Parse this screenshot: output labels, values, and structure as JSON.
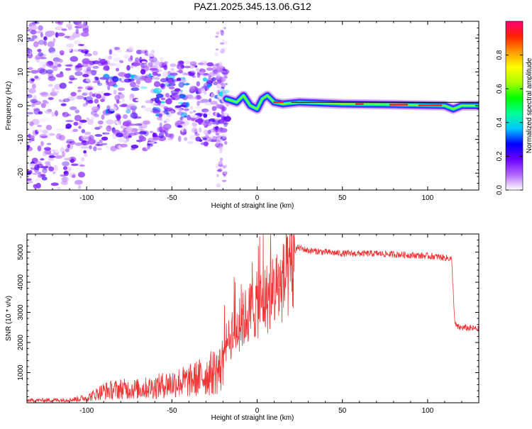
{
  "title": "PAZ1.2025.345.13.06.G12",
  "chart_data": [
    {
      "type": "heatmap",
      "name": "spectrogram",
      "xlabel": "Height of straight line (km)",
      "ylabel": "Frequency (Hz)",
      "xlim": [
        -135,
        130
      ],
      "ylim": [
        -25,
        25
      ],
      "xticks": [
        -100,
        -50,
        0,
        50,
        100
      ],
      "yticks": [
        -20,
        -10,
        0,
        10,
        20
      ],
      "xticklabels": [
        "-100",
        "-50",
        "0",
        "50",
        "100"
      ],
      "yticklabels": [
        "-20",
        "-10",
        "0",
        "10",
        "20"
      ],
      "colorbar": {
        "label": "Normalized spectral amplitude",
        "range": [
          0,
          1
        ],
        "ticks": [
          0.0,
          0.2,
          0.4,
          0.6,
          0.8
        ],
        "ticklabels": [
          "0.0",
          "0.2",
          "0.4",
          "0.6",
          "0.8"
        ],
        "colors": [
          "#ffffff",
          "#b366ff",
          "#6a00ff",
          "#0000ff",
          "#00c8ff",
          "#00ff96",
          "#00ff00",
          "#aaff00",
          "#ffff00",
          "#ff9900",
          "#ff2200",
          "#ff0077"
        ]
      },
      "description_points": {
        "noise_region_x": [
          -135,
          -20
        ],
        "tone_start_x": -18,
        "tone_freq_track": [
          [
            -18,
            2
          ],
          [
            -12,
            1
          ],
          [
            -8,
            3
          ],
          [
            -4,
            0
          ],
          [
            0,
            -1
          ],
          [
            3,
            2
          ],
          [
            6,
            3
          ],
          [
            10,
            1
          ],
          [
            15,
            0.5
          ],
          [
            25,
            1
          ],
          [
            50,
            0.5
          ],
          [
            80,
            0.3
          ],
          [
            110,
            0
          ],
          [
            115,
            -1
          ],
          [
            120,
            0
          ],
          [
            130,
            0
          ]
        ]
      },
      "grid": false
    },
    {
      "type": "line",
      "name": "snr",
      "xlabel": "Height of straight line (km)",
      "ylabel": "SNR (10 * v/v)",
      "xlim": [
        -135,
        130
      ],
      "ylim": [
        0,
        5600
      ],
      "xticks": [
        -100,
        -50,
        0,
        50,
        100
      ],
      "yticks": [
        1000,
        2000,
        3000,
        4000,
        5000
      ],
      "xticklabels": [
        "-100",
        "-50",
        "0",
        "50",
        "100"
      ],
      "yticklabels": [
        "1000",
        "2000",
        "3000",
        "4000",
        "5000"
      ],
      "color": "#ee3333",
      "envelope": [
        [
          -135,
          120
        ],
        [
          -110,
          150
        ],
        [
          -100,
          250
        ],
        [
          -90,
          600
        ],
        [
          -80,
          700
        ],
        [
          -70,
          700
        ],
        [
          -60,
          800
        ],
        [
          -50,
          1000
        ],
        [
          -40,
          1100
        ],
        [
          -30,
          1400
        ],
        [
          -22,
          1700
        ],
        [
          -18,
          2300
        ],
        [
          -14,
          2700
        ],
        [
          -10,
          3100
        ],
        [
          -6,
          3400
        ],
        [
          -2,
          3700
        ],
        [
          2,
          3900
        ],
        [
          8,
          4200
        ],
        [
          14,
          4600
        ],
        [
          18,
          4900
        ],
        [
          24,
          5150
        ],
        [
          30,
          5050
        ],
        [
          50,
          4950
        ],
        [
          70,
          4950
        ],
        [
          90,
          4900
        ],
        [
          105,
          4850
        ],
        [
          114,
          4780
        ],
        [
          116,
          2600
        ],
        [
          118,
          2500
        ],
        [
          130,
          2450
        ]
      ],
      "grid": false
    }
  ]
}
